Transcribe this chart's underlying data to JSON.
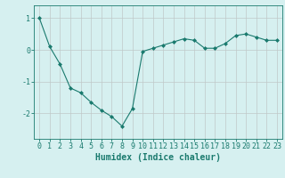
{
  "x": [
    0,
    1,
    2,
    3,
    4,
    5,
    6,
    7,
    8,
    9,
    10,
    11,
    12,
    13,
    14,
    15,
    16,
    17,
    18,
    19,
    20,
    21,
    22,
    23
  ],
  "y": [
    1.0,
    0.1,
    -0.45,
    -1.2,
    -1.35,
    -1.65,
    -1.9,
    -2.1,
    -2.4,
    -1.85,
    -0.05,
    0.05,
    0.15,
    0.25,
    0.35,
    0.3,
    0.05,
    0.05,
    0.2,
    0.45,
    0.5,
    0.4,
    0.3,
    0.3
  ],
  "line_color": "#1a7a6e",
  "marker": "D",
  "marker_size": 2.0,
  "bg_color": "#d6f0f0",
  "grid_color": "#c0c8c8",
  "xlabel": "Humidex (Indice chaleur)",
  "xlabel_fontsize": 7,
  "tick_fontsize": 6,
  "ylim": [
    -2.8,
    1.4
  ],
  "yticks": [
    -2,
    -1,
    0,
    1
  ],
  "xlim": [
    -0.5,
    23.5
  ]
}
